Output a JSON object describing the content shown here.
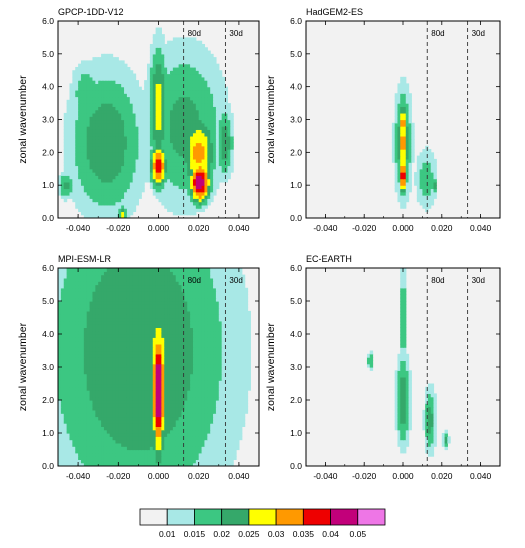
{
  "chart_data": {
    "type": "heatmap",
    "subtype": "filled-contour",
    "xlim": [
      -0.05,
      0.05
    ],
    "ylim": [
      0,
      6
    ],
    "xticks": [
      -0.04,
      -0.02,
      0.0,
      0.02,
      0.04
    ],
    "xtick_labels": [
      "-0.040",
      "-0.020",
      "0.000",
      "0.020",
      "0.040"
    ],
    "yticks": [
      0,
      1,
      2,
      3,
      4,
      5,
      6
    ],
    "ytick_labels": [
      "0.0",
      "1.0",
      "2.0",
      "3.0",
      "4.0",
      "5.0",
      "6.0"
    ],
    "ylabel": "zonal wavenumber",
    "levels": [
      0.01,
      0.015,
      0.02,
      0.025,
      0.03,
      0.035,
      0.04,
      0.05
    ],
    "level_labels": [
      "0.01",
      "0.015",
      "0.02",
      "0.025",
      "0.03",
      "0.035",
      "0.04",
      "0.05"
    ],
    "colors": [
      "#f2f2f2",
      "#a8e8e6",
      "#3cc782",
      "#35a86a",
      "#ffff00",
      "#ff9900",
      "#ee0000",
      "#c2007a",
      "#ee76e6"
    ],
    "reference_lines": [
      {
        "x": 0.0125,
        "label": "80d"
      },
      {
        "x": 0.0333,
        "label": "30d"
      }
    ],
    "panels": [
      {
        "title": "GPCP-1DD-V12",
        "show_ylabel": true,
        "blobs": [
          {
            "x": -0.026,
            "y": 2.3,
            "sx": 0.018,
            "sy": 2.2,
            "a": 0.018
          },
          {
            "x": -0.046,
            "y": 1.0,
            "sx": 0.004,
            "sy": 0.4,
            "a": 0.016
          },
          {
            "x": -0.036,
            "y": 3.8,
            "sx": 0.008,
            "sy": 1.0,
            "a": 0.013
          },
          {
            "x": 0.0,
            "y": 3.4,
            "sx": 0.0045,
            "sy": 1.8,
            "a": 0.022
          },
          {
            "x": 0.0,
            "y": 1.6,
            "sx": 0.0035,
            "sy": 0.6,
            "a": 0.032
          },
          {
            "x": 0.013,
            "y": 2.8,
            "sx": 0.02,
            "sy": 2.4,
            "a": 0.016
          },
          {
            "x": 0.02,
            "y": 2.0,
            "sx": 0.0075,
            "sy": 1.1,
            "a": 0.026
          },
          {
            "x": 0.0205,
            "y": 1.1,
            "sx": 0.0045,
            "sy": 0.55,
            "a": 0.038
          },
          {
            "x": 0.033,
            "y": 2.3,
            "sx": 0.004,
            "sy": 1.0,
            "a": 0.018
          },
          {
            "x": -0.018,
            "y": 0.1,
            "sx": 0.002,
            "sy": 0.35,
            "a": 0.02
          }
        ]
      },
      {
        "title": "HadGEM2-ES",
        "show_ylabel": true,
        "blobs": [
          {
            "x": 0.0,
            "y": 2.3,
            "sx": 0.0042,
            "sy": 1.6,
            "a": 0.019
          },
          {
            "x": 0.0,
            "y": 2.3,
            "sx": 0.0026,
            "sy": 1.3,
            "a": 0.026
          },
          {
            "x": 0.0,
            "y": 1.3,
            "sx": 0.0017,
            "sy": 0.45,
            "a": 0.034
          },
          {
            "x": 0.0,
            "y": 2.9,
            "sx": 0.0015,
            "sy": 0.4,
            "a": 0.031
          },
          {
            "x": 0.012,
            "y": 1.2,
            "sx": 0.006,
            "sy": 1.0,
            "a": 0.012
          },
          {
            "x": 0.016,
            "y": 1.0,
            "sx": 0.0012,
            "sy": 0.2,
            "a": 0.02
          }
        ]
      },
      {
        "title": "MPI-ESM-LR",
        "show_ylabel": true,
        "blobs": [
          {
            "x": -0.01,
            "y": 3.5,
            "sx": 0.045,
            "sy": 5.0,
            "a": 0.019
          },
          {
            "x": 0.0,
            "y": 2.6,
            "sx": 0.0045,
            "sy": 2.3,
            "a": 0.028
          },
          {
            "x": 0.0,
            "y": 2.3,
            "sx": 0.0032,
            "sy": 2.0,
            "a": 0.034
          },
          {
            "x": 0.0,
            "y": 2.3,
            "sx": 0.0028,
            "sy": 1.6,
            "a": 0.042
          },
          {
            "x": 0.012,
            "y": 3.2,
            "sx": 0.018,
            "sy": 2.3,
            "a": 0.009
          },
          {
            "x": 0.025,
            "y": 3.0,
            "sx": 0.008,
            "sy": 1.5,
            "a": 0.008
          }
        ]
      },
      {
        "title": "EC-EARTH",
        "show_ylabel": true,
        "blobs": [
          {
            "x": 0.0,
            "y": 2.0,
            "sx": 0.0035,
            "sy": 1.3,
            "a": 0.019
          },
          {
            "x": 0.0,
            "y": 2.0,
            "sx": 0.002,
            "sy": 0.8,
            "a": 0.005
          },
          {
            "x": 0.0,
            "y": 4.5,
            "sx": 0.002,
            "sy": 1.8,
            "a": 0.013
          },
          {
            "x": 0.014,
            "y": 1.4,
            "sx": 0.003,
            "sy": 1.0,
            "a": 0.016
          },
          {
            "x": -0.017,
            "y": 3.2,
            "sx": 0.0012,
            "sy": 0.25,
            "a": 0.016
          },
          {
            "x": 0.022,
            "y": 0.8,
            "sx": 0.0015,
            "sy": 0.3,
            "a": 0.016
          }
        ]
      }
    ]
  }
}
